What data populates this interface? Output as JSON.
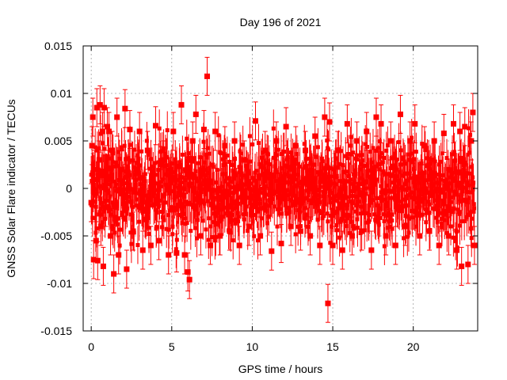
{
  "chart_data": {
    "type": "scatter",
    "title": "Day 196 of 2021",
    "xlabel": "GPS time / hours",
    "ylabel": "GNSS Solar Flare indicator / TECUs",
    "xlim": [
      -0.5,
      24.0
    ],
    "ylim": [
      -0.015,
      0.015
    ],
    "x_ticks": [
      0,
      5,
      10,
      15,
      20
    ],
    "x_tick_labels": [
      "0",
      "5",
      "10",
      "15",
      "20"
    ],
    "y_ticks": [
      -0.015,
      -0.01,
      -0.005,
      0,
      0.005,
      0.01,
      0.015
    ],
    "y_tick_labels": [
      "-0.015",
      "-0.01",
      "-0.005",
      "0",
      "0.005",
      "0.01",
      "0.015"
    ],
    "grid": true,
    "legend": "none",
    "colors": {
      "series": "#ff0000",
      "grid": "#a0a0a0",
      "axis": "#000000"
    },
    "series": [
      {
        "error_bar_typical": 0.002,
        "points": [
          [
            0.0,
            -0.0015
          ],
          [
            0.05,
            0.0045
          ],
          [
            0.1,
            0.0075
          ],
          [
            0.15,
            -0.0075
          ],
          [
            0.2,
            0.002
          ],
          [
            0.3,
            -0.0055
          ],
          [
            0.35,
            0.0085
          ],
          [
            0.4,
            -0.0076
          ],
          [
            0.5,
            0.003
          ],
          [
            0.55,
            0.0088
          ],
          [
            0.6,
            -0.004
          ],
          [
            0.7,
            0.006
          ],
          [
            0.75,
            -0.0082
          ],
          [
            0.8,
            0.0085
          ],
          [
            0.9,
            -0.002
          ],
          [
            1.0,
            0.0065
          ],
          [
            1.1,
            0.006
          ],
          [
            1.2,
            -0.005
          ],
          [
            1.3,
            0.004
          ],
          [
            1.4,
            -0.009
          ],
          [
            1.6,
            0.0075
          ],
          [
            1.7,
            -0.007
          ],
          [
            1.9,
            0.002
          ],
          [
            2.1,
            0.0084
          ],
          [
            2.2,
            -0.0085
          ],
          [
            2.4,
            0.0062
          ],
          [
            2.6,
            -0.0045
          ],
          [
            2.8,
            0.002
          ],
          [
            3.0,
            0.006
          ],
          [
            3.2,
            -0.0065
          ],
          [
            3.5,
            0.004
          ],
          [
            3.7,
            -0.006
          ],
          [
            4.0,
            0.0066
          ],
          [
            4.2,
            -0.0055
          ],
          [
            4.5,
            0.003
          ],
          [
            4.8,
            -0.007
          ],
          [
            5.1,
            0.006
          ],
          [
            5.3,
            -0.0068
          ],
          [
            5.6,
            0.0088
          ],
          [
            5.8,
            -0.007
          ],
          [
            6.0,
            -0.0088
          ],
          [
            6.1,
            -0.0096
          ],
          [
            6.3,
            0.005
          ],
          [
            6.5,
            0.0078
          ],
          [
            6.8,
            -0.005
          ],
          [
            7.0,
            0.0062
          ],
          [
            7.2,
            0.0118
          ],
          [
            7.4,
            -0.006
          ],
          [
            7.7,
            0.006
          ],
          [
            8.0,
            -0.005
          ],
          [
            8.3,
            0.0045
          ],
          [
            8.6,
            -0.0045
          ],
          [
            8.9,
            0.005
          ],
          [
            9.2,
            -0.006
          ],
          [
            9.5,
            0.003
          ],
          [
            9.8,
            -0.004
          ],
          [
            10.2,
            0.0071
          ],
          [
            10.5,
            -0.005
          ],
          [
            10.8,
            0.004
          ],
          [
            11.2,
            -0.0066
          ],
          [
            11.5,
            0.005
          ],
          [
            11.8,
            -0.0058
          ],
          [
            12.1,
            0.0065
          ],
          [
            12.4,
            -0.004
          ],
          [
            12.7,
            0.0045
          ],
          [
            13.0,
            -0.0045
          ],
          [
            13.3,
            0.004
          ],
          [
            13.6,
            -0.005
          ],
          [
            13.9,
            0.0055
          ],
          [
            14.2,
            -0.006
          ],
          [
            14.5,
            0.0075
          ],
          [
            14.7,
            -0.0121
          ],
          [
            14.8,
            0.007
          ],
          [
            15.0,
            -0.006
          ],
          [
            15.3,
            0.004
          ],
          [
            15.6,
            -0.0065
          ],
          [
            15.9,
            0.0068
          ],
          [
            16.2,
            -0.005
          ],
          [
            16.5,
            0.005
          ],
          [
            16.8,
            -0.0045
          ],
          [
            17.1,
            0.006
          ],
          [
            17.4,
            -0.0065
          ],
          [
            17.7,
            0.0075
          ],
          [
            18.0,
            0.0068
          ],
          [
            18.3,
            -0.005
          ],
          [
            18.6,
            0.005
          ],
          [
            18.9,
            -0.006
          ],
          [
            19.2,
            0.0078
          ],
          [
            19.5,
            -0.004
          ],
          [
            19.8,
            0.005
          ],
          [
            20.1,
            0.0068
          ],
          [
            20.4,
            -0.005
          ],
          [
            20.7,
            0.0045
          ],
          [
            21.0,
            -0.0045
          ],
          [
            21.3,
            0.005
          ],
          [
            21.6,
            -0.006
          ],
          [
            21.9,
            0.0058
          ],
          [
            22.2,
            -0.005
          ],
          [
            22.5,
            0.0068
          ],
          [
            22.7,
            -0.0065
          ],
          [
            22.9,
            0.006
          ],
          [
            23.0,
            -0.0082
          ],
          [
            23.2,
            0.0065
          ],
          [
            23.4,
            -0.008
          ],
          [
            23.6,
            0.005
          ],
          [
            23.7,
            0.008
          ],
          [
            23.8,
            -0.006
          ]
        ]
      }
    ]
  }
}
